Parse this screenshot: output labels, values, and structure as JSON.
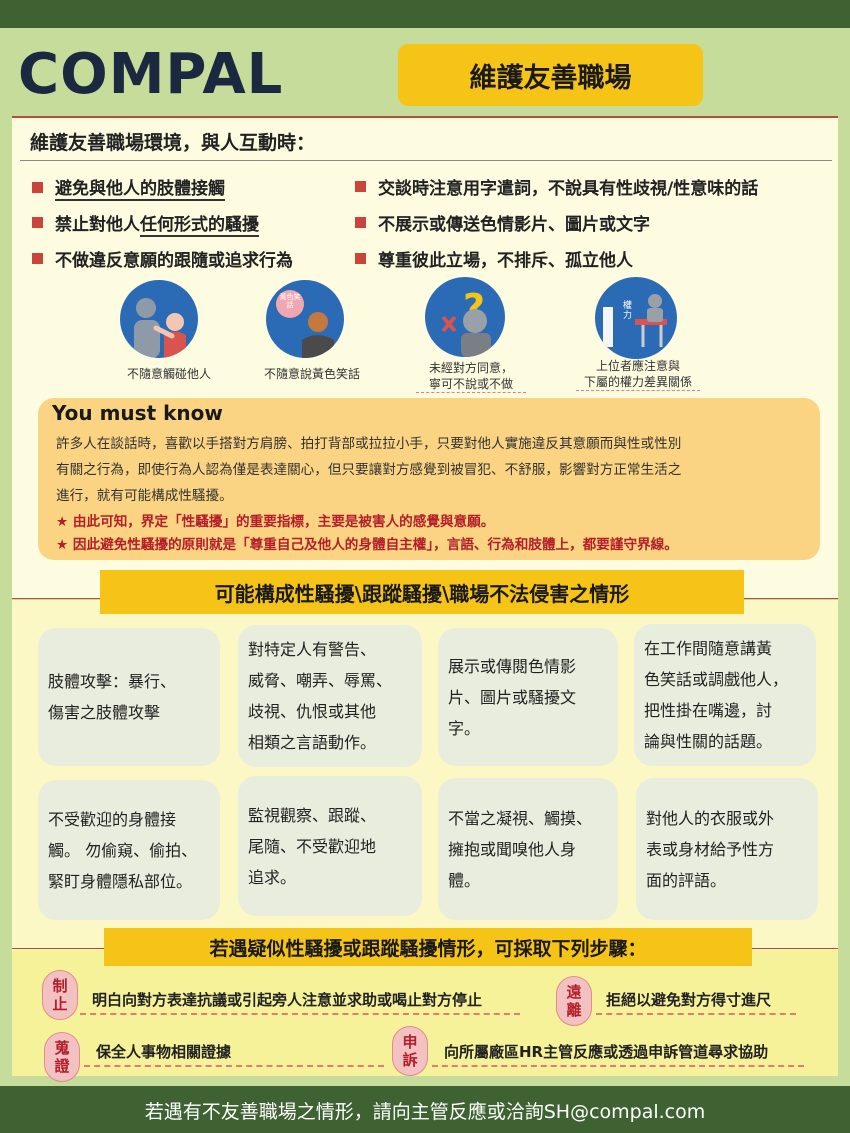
{
  "header": {
    "logo": "COMPAL",
    "title": "維護友善職場"
  },
  "intro": "維護友善職場環境，與人互動時：",
  "bullets": [
    {
      "parts": [
        "避免與他人的肢體接觸"
      ],
      "under": [
        0
      ]
    },
    {
      "parts": [
        "交談時注意用字遣詞，不說具有性歧視/性意味的話"
      ]
    },
    {
      "parts": [
        "禁止對他人",
        "任何形式的騷擾"
      ]
    },
    {
      "parts": [
        "不展示或傳送色情影片、圖片或文字"
      ]
    },
    {
      "parts": [
        "不做違反意願的跟隨或追求行為"
      ]
    },
    {
      "parts": [
        "尊重彼此立場，不排斥、孤立他人"
      ]
    }
  ],
  "icons": [
    {
      "caption": "不隨意觸碰他人"
    },
    {
      "caption": "不隨意說黃色笑話",
      "bubble": "黃色笑話"
    },
    {
      "caption1": "未經對方同意，",
      "caption2": "寧可不說或不做"
    },
    {
      "caption1": "上位者應注意與",
      "caption2": "下屬的權力差異關係",
      "label": "權力"
    }
  ],
  "know": {
    "title": "You must know",
    "lines": [
      "許多人在談話時，喜歡以手搭對方肩膀、拍打背部或拉拉小手，只要對他人實施違反其意願而與性或性別",
      "有關之行為，即使行為人認為僅是表達關心，但只要讓對方感覺到被冒犯、不舒服，影響對方正常生活之",
      "進行，就有可能構成性騷擾。"
    ],
    "red1": "★ 由此可知，界定「性騷擾」的重要指標，主要是被害人的感覺與意願。",
    "red2": "★ 因此避免性騷擾的原則就是「尊重自己及他人的身體自主權」，言語、行為和肢體上，都要謹守界線。"
  },
  "cases_title": "可能構成性騷擾\\跟蹤騷擾\\職場不法侵害之情形",
  "cases": [
    [
      "肢體攻擊：暴行、",
      "傷害之肢體攻擊"
    ],
    [
      "對特定人有警告、",
      "威脅、嘲弄、辱罵、",
      "歧視、仇恨或其他",
      "相類之言語動作。"
    ],
    [
      "展示或傳閱色情影",
      "片、圖片或騷擾文",
      "字。"
    ],
    [
      "在工作間隨意講黃",
      "色笑話或調戲他人，",
      "把性掛在嘴邊，討",
      "論與性關的話題。"
    ],
    [
      "不受歡迎的身體接",
      "觸。 勿偷窺、偷拍、",
      "緊盯身體隱私部位。"
    ],
    [
      "監視觀察、跟蹤、",
      "尾隨、不受歡迎地",
      "追求。"
    ],
    [
      "不當之凝視、觸摸、",
      "擁抱或聞嗅他人身",
      "體。"
    ],
    [
      "對他人的衣服或外",
      "表或身材給予性方",
      "面的評語。"
    ]
  ],
  "steps_title": "若遇疑似性騷擾或跟蹤騷擾情形，可採取下列步驟：",
  "steps": [
    {
      "badge1": "制",
      "badge2": "止",
      "text": "明白向對方表達抗議或引起旁人注意並求助或喝止對方停止"
    },
    {
      "badge1": "遠",
      "badge2": "離",
      "text": "拒絕以避免對方得寸進尺"
    },
    {
      "badge1": "蒐",
      "badge2": "證",
      "text": "保全人事物相關證據"
    },
    {
      "badge1": "申",
      "badge2": "訴",
      "text": "向所屬廠區HR主管反應或透過申訴管道尋求協助"
    }
  ],
  "footer": "若遇有不友善職場之情形，請向主管反應或洽詢SH@compal.com"
}
